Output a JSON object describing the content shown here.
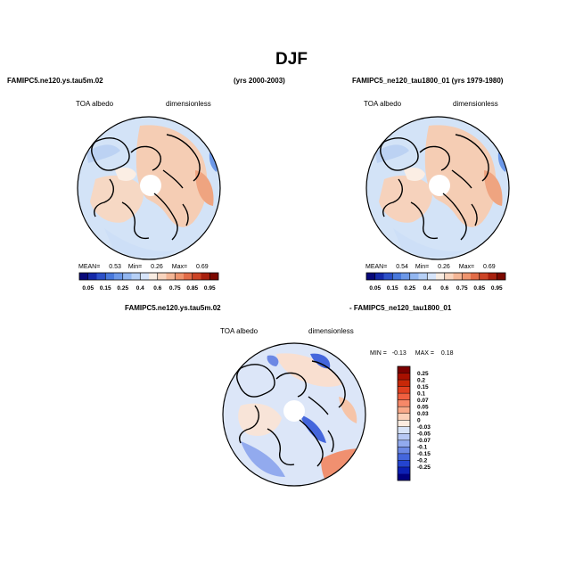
{
  "title": "DJF",
  "panels": [
    {
      "case": "FAMIPC5.ne120.ys.tau5m.02",
      "years": "(yrs 2000-2003)",
      "variable": "TOA albedo",
      "units": "dimensionless",
      "mean_label": "MEAN=",
      "mean": "0.53",
      "min_label": "Min=",
      "min": "0.26",
      "max_label": "Max=",
      "max": "0.69"
    },
    {
      "case": "FAMIPC5_ne120_tau1800_01 (yrs 1979-1980)",
      "variable": "TOA albedo",
      "units": "dimensionless",
      "mean_label": "MEAN=",
      "mean": "0.54",
      "min_label": "Min=",
      "min": "0.26",
      "max_label": "Max=",
      "max": "0.69"
    }
  ],
  "diff": {
    "case_a": "FAMIPC5.ne120.ys.tau5m.02",
    "case_b": "- FAMIPC5_ne120_tau1800_01",
    "variable": "TOA albedo",
    "units": "dimensionless",
    "min_label": "MIN =",
    "min": "-0.13",
    "max_label": "MAX =",
    "max": "0.18"
  },
  "chart_data": [
    {
      "type": "heatmap",
      "title": "FAMIPC5.ne120.ys.tau5m.02 (yrs 2000-2003)",
      "projection": "north-polar-stereographic",
      "variable": "TOA albedo",
      "units": "dimensionless",
      "stats": {
        "mean": 0.53,
        "min": 0.26,
        "max": 0.69
      },
      "colorbar": {
        "orientation": "horizontal",
        "levels": [
          0.05,
          0.15,
          0.25,
          0.4,
          0.6,
          0.75,
          0.85,
          0.95
        ],
        "tick_labels": [
          "0.05",
          "0.15",
          "0.25",
          "0.4",
          "0.6",
          "0.75",
          "0.85",
          "0.95"
        ],
        "colors": [
          "#08087a",
          "#1428a8",
          "#2c50c8",
          "#4878dc",
          "#6c98e8",
          "#92b6f0",
          "#b6d0f6",
          "#d6e4fa",
          "#f8ece2",
          "#f8d4be",
          "#f4b696",
          "#ee946e",
          "#e26c48",
          "#cc4426",
          "#a8200e",
          "#7c0800"
        ]
      }
    },
    {
      "type": "heatmap",
      "title": "FAMIPC5_ne120_tau1800_01 (yrs 1979-1980)",
      "projection": "north-polar-stereographic",
      "variable": "TOA albedo",
      "units": "dimensionless",
      "stats": {
        "mean": 0.54,
        "min": 0.26,
        "max": 0.69
      },
      "colorbar": {
        "orientation": "horizontal",
        "levels": [
          0.05,
          0.15,
          0.25,
          0.4,
          0.6,
          0.75,
          0.85,
          0.95
        ],
        "tick_labels": [
          "0.05",
          "0.15",
          "0.25",
          "0.4",
          "0.6",
          "0.75",
          "0.85",
          "0.95"
        ],
        "colors": [
          "#08087a",
          "#1428a8",
          "#2c50c8",
          "#4878dc",
          "#6c98e8",
          "#92b6f0",
          "#b6d0f6",
          "#d6e4fa",
          "#f8ece2",
          "#f8d4be",
          "#f4b696",
          "#ee946e",
          "#e26c48",
          "#cc4426",
          "#a8200e",
          "#7c0800"
        ]
      }
    },
    {
      "type": "heatmap",
      "title": "FAMIPC5.ne120.ys.tau5m.02 - FAMIPC5_ne120_tau1800_01",
      "projection": "north-polar-stereographic",
      "variable": "TOA albedo",
      "units": "dimensionless",
      "stats": {
        "min": -0.13,
        "max": 0.18
      },
      "colorbar": {
        "orientation": "vertical",
        "tick_labels": [
          "0.25",
          "0.2",
          "0.15",
          "0.1",
          "0.07",
          "0.05",
          "0.03",
          "0",
          "-0.03",
          "-0.05",
          "-0.07",
          "-0.1",
          "-0.15",
          "-0.2",
          "-0.25"
        ],
        "colors": [
          "#7c0000",
          "#a81000",
          "#c82808",
          "#e04020",
          "#f06040",
          "#f68868",
          "#f8a888",
          "#fcd0b8",
          "#fcece0",
          "#d8e4f8",
          "#b6c8f4",
          "#92aaee",
          "#6c88e4",
          "#4466dc",
          "#2444d0",
          "#0c20b4",
          "#000080"
        ]
      }
    }
  ]
}
